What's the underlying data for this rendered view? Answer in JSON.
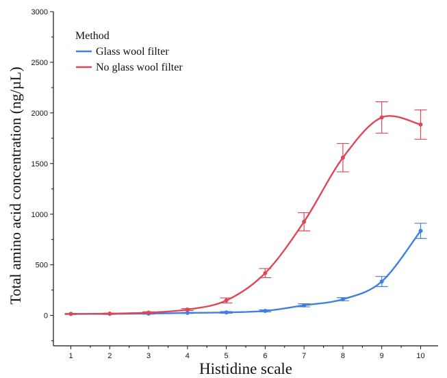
{
  "chart_data": {
    "type": "line",
    "title": "",
    "xlabel": "Histidine scale",
    "ylabel": "Total amino acid concentration (ng/µL)",
    "xlim": [
      0.55,
      10.45
    ],
    "ylim": [
      -300,
      3000
    ],
    "x_ticks": [
      1,
      2,
      3,
      4,
      5,
      6,
      7,
      8,
      9,
      10
    ],
    "y_ticks": [
      0,
      500,
      1000,
      1500,
      2000,
      2500,
      3000
    ],
    "x": [
      1,
      2,
      3,
      4,
      5,
      6,
      7,
      8,
      9,
      10
    ],
    "legend": {
      "title": "Method",
      "position": "top-left"
    },
    "grid": false,
    "series": [
      {
        "name": "Glass wool filter",
        "color": "#3f7fe0",
        "values": [
          15,
          15,
          18,
          25,
          30,
          45,
          100,
          160,
          335,
          835
        ],
        "errors": [
          5,
          5,
          5,
          5,
          8,
          10,
          15,
          15,
          50,
          75
        ]
      },
      {
        "name": "No glass wool filter",
        "color": "#de4758",
        "values": [
          15,
          18,
          28,
          58,
          148,
          418,
          925,
          1558,
          1955,
          1885
        ],
        "errors": [
          5,
          5,
          8,
          10,
          25,
          45,
          90,
          140,
          155,
          145
        ]
      }
    ]
  }
}
